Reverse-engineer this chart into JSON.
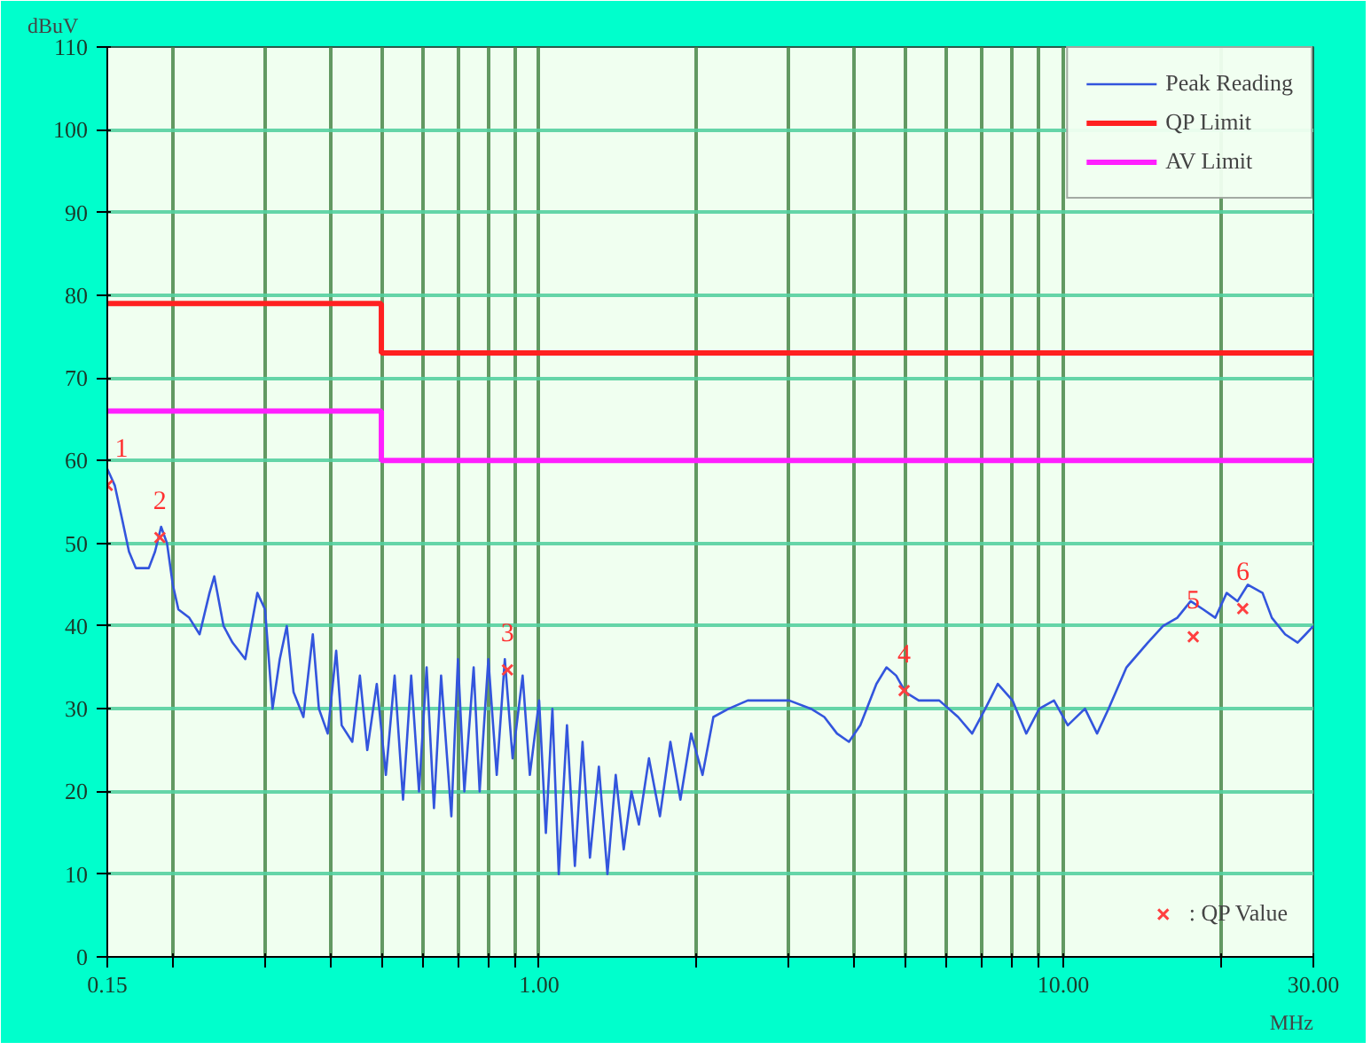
{
  "chart_data": {
    "type": "line",
    "ylabel": "dBuV",
    "xlabel": "MHz",
    "log": "x",
    "xlim": [
      0.15,
      30
    ],
    "ylim": [
      0,
      110
    ],
    "xticks": [
      {
        "value": 0.15,
        "label": "0.15"
      },
      {
        "value": 0.2,
        "label": null
      },
      {
        "value": 0.3,
        "label": null
      },
      {
        "value": 0.4,
        "label": null
      },
      {
        "value": 0.5,
        "label": null
      },
      {
        "value": 0.6,
        "label": null
      },
      {
        "value": 0.7,
        "label": null
      },
      {
        "value": 0.8,
        "label": null
      },
      {
        "value": 0.9,
        "label": null
      },
      {
        "value": 1,
        "label": "1.00"
      },
      {
        "value": 2,
        "label": null
      },
      {
        "value": 3,
        "label": null
      },
      {
        "value": 4,
        "label": null
      },
      {
        "value": 5,
        "label": null
      },
      {
        "value": 6,
        "label": null
      },
      {
        "value": 7,
        "label": null
      },
      {
        "value": 8,
        "label": null
      },
      {
        "value": 9,
        "label": null
      },
      {
        "value": 10,
        "label": "10.00"
      },
      {
        "value": 20,
        "label": null
      },
      {
        "value": 30,
        "label": "30.00"
      }
    ],
    "yticks": [
      0,
      10,
      20,
      30,
      40,
      50,
      60,
      70,
      80,
      90,
      100,
      110
    ],
    "grid": true,
    "legend": "top right",
    "series": [
      {
        "name": "Peak Reading",
        "color": "#3355dd",
        "x": [
          0.15,
          0.155,
          0.16,
          0.165,
          0.17,
          0.18,
          0.185,
          0.19,
          0.195,
          0.2,
          0.205,
          0.215,
          0.225,
          0.235,
          0.24,
          0.25,
          0.26,
          0.275,
          0.29,
          0.3,
          0.31,
          0.32,
          0.33,
          0.34,
          0.355,
          0.37,
          0.38,
          0.395,
          0.41,
          0.42,
          0.44,
          0.455,
          0.47,
          0.49,
          0.51,
          0.53,
          0.55,
          0.57,
          0.59,
          0.61,
          0.63,
          0.65,
          0.68,
          0.7,
          0.72,
          0.75,
          0.77,
          0.8,
          0.83,
          0.86,
          0.89,
          0.93,
          0.96,
          1.0,
          1.03,
          1.06,
          1.09,
          1.13,
          1.17,
          1.21,
          1.25,
          1.3,
          1.35,
          1.4,
          1.45,
          1.5,
          1.55,
          1.62,
          1.7,
          1.78,
          1.86,
          1.95,
          2.05,
          2.15,
          2.3,
          2.5,
          2.8,
          3.0,
          3.3,
          3.5,
          3.7,
          3.9,
          4.1,
          4.4,
          4.6,
          4.8,
          5.0,
          5.3,
          5.8,
          6.3,
          6.7,
          7.1,
          7.5,
          8.0,
          8.5,
          9.0,
          9.6,
          10.2,
          11.0,
          11.6,
          12.2,
          13.2,
          14.5,
          15.5,
          16.5,
          17.5,
          18.5,
          19.5,
          20.5,
          21.5,
          22.5,
          24,
          25,
          26.5,
          28,
          29,
          30
        ],
        "values": [
          59,
          57,
          53,
          49,
          47,
          47,
          49,
          52,
          50,
          45,
          42,
          41,
          39,
          44,
          46,
          40,
          38,
          36,
          44,
          42,
          30,
          36,
          40,
          32,
          29,
          39,
          30,
          27,
          37,
          28,
          26,
          34,
          25,
          33,
          22,
          34,
          19,
          34,
          20,
          35,
          18,
          34,
          17,
          36,
          20,
          35,
          20,
          36,
          22,
          36,
          24,
          34,
          22,
          31,
          15,
          30,
          10,
          28,
          11,
          26,
          12,
          23,
          10,
          22,
          13,
          20,
          16,
          24,
          17,
          26,
          19,
          27,
          22,
          29,
          30,
          31,
          31,
          31,
          30,
          29,
          27,
          26,
          28,
          33,
          35,
          34,
          32,
          31,
          31,
          29,
          27,
          30,
          33,
          31,
          27,
          30,
          31,
          28,
          30,
          27,
          30,
          35,
          38,
          40,
          41,
          43,
          42,
          41,
          44,
          43,
          45,
          44,
          41,
          39,
          38,
          39,
          40
        ]
      },
      {
        "name": "QP Limit",
        "color": "#ff2020",
        "type": "step",
        "x": [
          0.15,
          0.5,
          30
        ],
        "values": [
          79,
          73,
          73
        ]
      },
      {
        "name": "AV Limit",
        "color": "#ff20ff",
        "type": "step",
        "x": [
          0.15,
          0.5,
          30
        ],
        "values": [
          66,
          60,
          60
        ]
      },
      {
        "name": ": QP Value",
        "color": "#ff4040",
        "type": "scatter",
        "marker": "cross",
        "x": [
          0.15,
          0.189,
          0.87,
          4.97,
          17.7,
          22.0
        ],
        "values": [
          57,
          50.7,
          34.7,
          32.2,
          38.7,
          42.1
        ]
      }
    ],
    "annotations": [
      "1",
      "2",
      "3",
      "4",
      "5",
      "6"
    ]
  }
}
